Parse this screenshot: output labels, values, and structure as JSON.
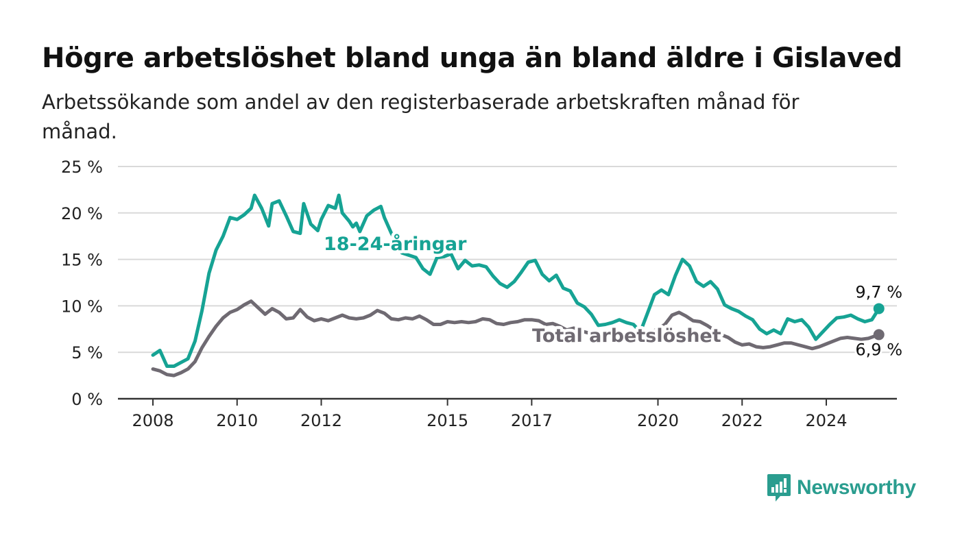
{
  "title": "Högre arbetslöshet bland unga än bland äldre i Gislaved",
  "subtitle": "Arbetssökande som andel av den registerbaserade arbetskraften månad för månad.",
  "brand": {
    "name": "Newsworthy",
    "color": "#2a9d8f",
    "icon": "bar-chart-speech-bubble-icon"
  },
  "chart_data": {
    "type": "line",
    "y_unit": "%",
    "ylim": [
      0,
      25
    ],
    "y_ticks": [
      {
        "value": 0,
        "label": "0 %"
      },
      {
        "value": 5,
        "label": "5 %"
      },
      {
        "value": 10,
        "label": "10 %"
      },
      {
        "value": 15,
        "label": "15 %"
      },
      {
        "value": 20,
        "label": "20 %"
      },
      {
        "value": 25,
        "label": "25 %"
      }
    ],
    "x_ticks": [
      {
        "value": "2008-01",
        "label": "2008"
      },
      {
        "value": "2010-01",
        "label": "2010"
      },
      {
        "value": "2012-01",
        "label": "2012"
      },
      {
        "value": "2015-01",
        "label": "2015"
      },
      {
        "value": "2017-01",
        "label": "2017"
      },
      {
        "value": "2020-01",
        "label": "2020"
      },
      {
        "value": "2022-01",
        "label": "2022"
      },
      {
        "value": "2024-01",
        "label": "2024"
      }
    ],
    "grid": true,
    "series": [
      {
        "name": "18-24-åringar",
        "color": "#16a394",
        "end_label": "9,7 %",
        "points": [
          [
            "2008-01",
            4.7
          ],
          [
            "2008-03",
            5.2
          ],
          [
            "2008-05",
            3.5
          ],
          [
            "2008-07",
            3.5
          ],
          [
            "2008-09",
            3.9
          ],
          [
            "2008-11",
            4.3
          ],
          [
            "2009-01",
            6.2
          ],
          [
            "2009-03",
            9.5
          ],
          [
            "2009-05",
            13.5
          ],
          [
            "2009-07",
            16.0
          ],
          [
            "2009-09",
            17.5
          ],
          [
            "2009-11",
            19.5
          ],
          [
            "2010-01",
            19.3
          ],
          [
            "2010-03",
            19.8
          ],
          [
            "2010-05",
            20.5
          ],
          [
            "2010-06",
            21.9
          ],
          [
            "2010-08",
            20.5
          ],
          [
            "2010-10",
            18.6
          ],
          [
            "2010-11",
            21.0
          ],
          [
            "2011-01",
            21.3
          ],
          [
            "2011-03",
            19.7
          ],
          [
            "2011-05",
            18.0
          ],
          [
            "2011-07",
            17.8
          ],
          [
            "2011-08",
            21.0
          ],
          [
            "2011-10",
            18.8
          ],
          [
            "2011-12",
            18.1
          ],
          [
            "2012-01",
            19.3
          ],
          [
            "2012-03",
            20.8
          ],
          [
            "2012-05",
            20.5
          ],
          [
            "2012-06",
            21.9
          ],
          [
            "2012-07",
            20.0
          ],
          [
            "2012-09",
            19.1
          ],
          [
            "2012-10",
            18.5
          ],
          [
            "2012-11",
            18.9
          ],
          [
            "2012-12",
            18.0
          ],
          [
            "2013-02",
            19.7
          ],
          [
            "2013-04",
            20.3
          ],
          [
            "2013-06",
            20.7
          ],
          [
            "2013-07",
            19.5
          ],
          [
            "2013-09",
            17.8
          ],
          [
            "2013-12",
            15.7
          ],
          [
            "2014-04",
            15.2
          ],
          [
            "2014-06",
            14.0
          ],
          [
            "2014-08",
            13.4
          ],
          [
            "2014-10",
            15.2
          ],
          [
            "2014-12",
            15.3
          ],
          [
            "2015-02",
            15.6
          ],
          [
            "2015-04",
            14.0
          ],
          [
            "2015-06",
            14.9
          ],
          [
            "2015-08",
            14.3
          ],
          [
            "2015-10",
            14.4
          ],
          [
            "2015-12",
            14.2
          ],
          [
            "2016-02",
            13.2
          ],
          [
            "2016-04",
            12.4
          ],
          [
            "2016-06",
            12.0
          ],
          [
            "2016-08",
            12.6
          ],
          [
            "2016-10",
            13.6
          ],
          [
            "2016-12",
            14.7
          ],
          [
            "2017-02",
            14.9
          ],
          [
            "2017-04",
            13.4
          ],
          [
            "2017-06",
            12.7
          ],
          [
            "2017-08",
            13.3
          ],
          [
            "2017-10",
            11.9
          ],
          [
            "2017-12",
            11.6
          ],
          [
            "2018-02",
            10.3
          ],
          [
            "2018-04",
            9.9
          ],
          [
            "2018-06",
            9.1
          ],
          [
            "2018-08",
            7.9
          ],
          [
            "2018-10",
            8.0
          ],
          [
            "2018-12",
            8.2
          ],
          [
            "2019-02",
            8.5
          ],
          [
            "2019-04",
            8.2
          ],
          [
            "2019-06",
            8.0
          ],
          [
            "2019-08",
            7.2
          ],
          [
            "2019-10",
            9.2
          ],
          [
            "2019-12",
            11.2
          ],
          [
            "2020-02",
            11.7
          ],
          [
            "2020-04",
            11.2
          ],
          [
            "2020-06",
            13.3
          ],
          [
            "2020-08",
            15.0
          ],
          [
            "2020-10",
            14.3
          ],
          [
            "2020-12",
            12.6
          ],
          [
            "2021-02",
            12.1
          ],
          [
            "2021-04",
            12.6
          ],
          [
            "2021-06",
            11.8
          ],
          [
            "2021-08",
            10.1
          ],
          [
            "2021-10",
            9.7
          ],
          [
            "2021-12",
            9.4
          ],
          [
            "2022-02",
            8.9
          ],
          [
            "2022-04",
            8.5
          ],
          [
            "2022-06",
            7.5
          ],
          [
            "2022-08",
            7.0
          ],
          [
            "2022-10",
            7.4
          ],
          [
            "2022-12",
            7.0
          ],
          [
            "2023-02",
            8.6
          ],
          [
            "2023-04",
            8.3
          ],
          [
            "2023-06",
            8.5
          ],
          [
            "2023-08",
            7.7
          ],
          [
            "2023-10",
            6.4
          ],
          [
            "2023-12",
            7.2
          ],
          [
            "2024-02",
            8.0
          ],
          [
            "2024-04",
            8.7
          ],
          [
            "2024-06",
            8.8
          ],
          [
            "2024-08",
            9.0
          ],
          [
            "2024-10",
            8.6
          ],
          [
            "2024-12",
            8.3
          ],
          [
            "2025-02",
            8.5
          ],
          [
            "2025-04",
            9.7
          ]
        ]
      },
      {
        "name": "Total arbetslöshet",
        "color": "#6f6a72",
        "end_label": "6,9 %",
        "points": [
          [
            "2008-01",
            3.2
          ],
          [
            "2008-03",
            3.0
          ],
          [
            "2008-05",
            2.6
          ],
          [
            "2008-07",
            2.5
          ],
          [
            "2008-09",
            2.8
          ],
          [
            "2008-11",
            3.2
          ],
          [
            "2009-01",
            4.0
          ],
          [
            "2009-03",
            5.5
          ],
          [
            "2009-05",
            6.7
          ],
          [
            "2009-07",
            7.8
          ],
          [
            "2009-09",
            8.7
          ],
          [
            "2009-11",
            9.3
          ],
          [
            "2010-01",
            9.6
          ],
          [
            "2010-03",
            10.1
          ],
          [
            "2010-05",
            10.5
          ],
          [
            "2010-07",
            9.8
          ],
          [
            "2010-09",
            9.1
          ],
          [
            "2010-11",
            9.7
          ],
          [
            "2011-01",
            9.3
          ],
          [
            "2011-03",
            8.6
          ],
          [
            "2011-05",
            8.7
          ],
          [
            "2011-07",
            9.6
          ],
          [
            "2011-09",
            8.8
          ],
          [
            "2011-11",
            8.4
          ],
          [
            "2012-01",
            8.6
          ],
          [
            "2012-03",
            8.4
          ],
          [
            "2012-05",
            8.7
          ],
          [
            "2012-07",
            9.0
          ],
          [
            "2012-09",
            8.7
          ],
          [
            "2012-11",
            8.6
          ],
          [
            "2013-01",
            8.7
          ],
          [
            "2013-03",
            9.0
          ],
          [
            "2013-05",
            9.5
          ],
          [
            "2013-07",
            9.2
          ],
          [
            "2013-09",
            8.6
          ],
          [
            "2013-11",
            8.5
          ],
          [
            "2014-01",
            8.7
          ],
          [
            "2014-03",
            8.6
          ],
          [
            "2014-05",
            8.9
          ],
          [
            "2014-07",
            8.5
          ],
          [
            "2014-09",
            8.0
          ],
          [
            "2014-11",
            8.0
          ],
          [
            "2015-01",
            8.3
          ],
          [
            "2015-03",
            8.2
          ],
          [
            "2015-05",
            8.3
          ],
          [
            "2015-07",
            8.2
          ],
          [
            "2015-09",
            8.3
          ],
          [
            "2015-11",
            8.6
          ],
          [
            "2016-01",
            8.5
          ],
          [
            "2016-03",
            8.1
          ],
          [
            "2016-05",
            8.0
          ],
          [
            "2016-07",
            8.2
          ],
          [
            "2016-09",
            8.3
          ],
          [
            "2016-11",
            8.5
          ],
          [
            "2017-01",
            8.5
          ],
          [
            "2017-03",
            8.4
          ],
          [
            "2017-05",
            8.0
          ],
          [
            "2017-07",
            8.1
          ],
          [
            "2017-09",
            7.8
          ],
          [
            "2017-11",
            7.4
          ],
          [
            "2018-01",
            7.6
          ],
          [
            "2018-03",
            7.3
          ],
          [
            "2018-05",
            7.1
          ],
          [
            "2018-07",
            6.9
          ],
          [
            "2018-09",
            6.8
          ],
          [
            "2018-11",
            6.9
          ],
          [
            "2019-01",
            7.0
          ],
          [
            "2019-03",
            6.8
          ],
          [
            "2019-05",
            6.7
          ],
          [
            "2019-07",
            6.5
          ],
          [
            "2019-09",
            6.9
          ],
          [
            "2019-11",
            7.2
          ],
          [
            "2020-01",
            7.5
          ],
          [
            "2020-03",
            8.0
          ],
          [
            "2020-05",
            9.0
          ],
          [
            "2020-07",
            9.3
          ],
          [
            "2020-09",
            8.9
          ],
          [
            "2020-11",
            8.4
          ],
          [
            "2021-01",
            8.3
          ],
          [
            "2021-03",
            7.9
          ],
          [
            "2021-05",
            7.4
          ],
          [
            "2021-07",
            6.9
          ],
          [
            "2021-09",
            6.6
          ],
          [
            "2021-11",
            6.1
          ],
          [
            "2022-01",
            5.8
          ],
          [
            "2022-03",
            5.9
          ],
          [
            "2022-05",
            5.6
          ],
          [
            "2022-07",
            5.5
          ],
          [
            "2022-09",
            5.6
          ],
          [
            "2022-11",
            5.8
          ],
          [
            "2023-01",
            6.0
          ],
          [
            "2023-03",
            6.0
          ],
          [
            "2023-05",
            5.8
          ],
          [
            "2023-07",
            5.6
          ],
          [
            "2023-09",
            5.4
          ],
          [
            "2023-11",
            5.6
          ],
          [
            "2024-01",
            5.9
          ],
          [
            "2024-03",
            6.2
          ],
          [
            "2024-05",
            6.5
          ],
          [
            "2024-07",
            6.6
          ],
          [
            "2024-09",
            6.5
          ],
          [
            "2024-11",
            6.4
          ],
          [
            "2025-01",
            6.5
          ],
          [
            "2025-04",
            6.9
          ]
        ]
      }
    ]
  }
}
